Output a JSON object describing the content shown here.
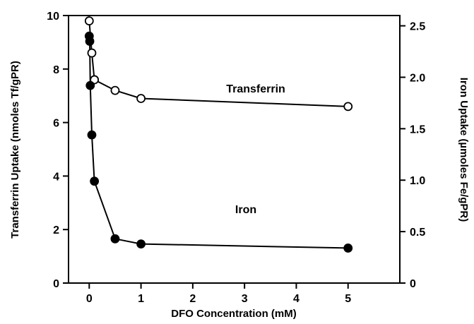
{
  "chart_data": {
    "type": "line",
    "title": "",
    "xlabel": "DFO Concentration (mM)",
    "ylabel_left": "Transferrin Uptake (nmoles Tf/gPR)",
    "ylabel_right": "Iron Uptake (µmoles Fe/gPR)",
    "xlim": [
      -0.4,
      6.0
    ],
    "ylim_left": [
      0,
      10
    ],
    "ylim_right": [
      0,
      2.6
    ],
    "x_ticks": [
      "0",
      "1",
      "2",
      "3",
      "4",
      "5"
    ],
    "y_left_ticks": [
      "0",
      "2",
      "4",
      "6",
      "8",
      "10"
    ],
    "y_right_ticks": [
      "0",
      "0.5",
      "1.0",
      "1.5",
      "2.0",
      "2.5"
    ],
    "grid": false,
    "series": [
      {
        "name": "Transferrin",
        "axis": "left",
        "marker": "open-circle",
        "x": [
          0,
          0.05,
          0.1,
          0.5,
          1,
          5
        ],
        "y": [
          9.8,
          8.6,
          7.6,
          7.2,
          6.9,
          6.6
        ]
      },
      {
        "name": "Iron",
        "axis": "right",
        "marker": "filled-circle",
        "x": [
          0,
          0.01,
          0.02,
          0.05,
          0.1,
          0.5,
          1,
          5
        ],
        "y": [
          2.4,
          2.35,
          1.92,
          1.44,
          0.99,
          0.43,
          0.38,
          0.34
        ]
      }
    ]
  }
}
